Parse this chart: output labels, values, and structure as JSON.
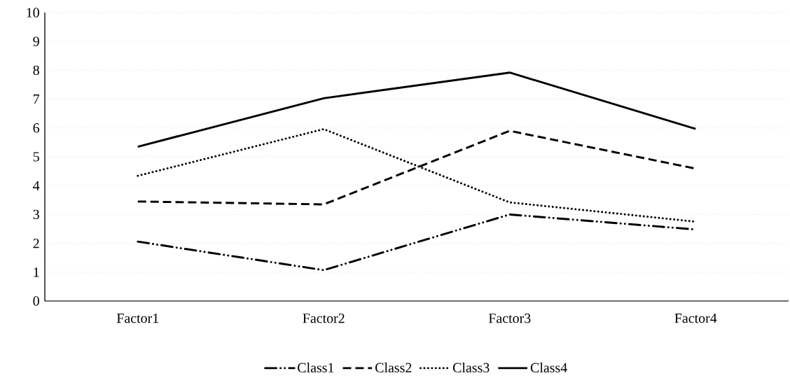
{
  "chart_data": {
    "type": "line",
    "categories": [
      "Factor1",
      "Factor2",
      "Factor3",
      "Factor4"
    ],
    "series": [
      {
        "name": "Class1",
        "color": "#000000",
        "line_style": "dashdot",
        "values": [
          2.06,
          1.07,
          3.0,
          2.48
        ]
      },
      {
        "name": "Class2",
        "color": "#000000",
        "line_style": "dashed",
        "values": [
          3.45,
          3.35,
          5.9,
          4.59
        ]
      },
      {
        "name": "Class3",
        "color": "#000000",
        "line_style": "dotted",
        "values": [
          4.34,
          5.96,
          3.42,
          2.75
        ]
      },
      {
        "name": "Class4",
        "color": "#000000",
        "line_style": "solid",
        "values": [
          5.35,
          7.03,
          7.92,
          5.97
        ]
      }
    ],
    "ylim": [
      0,
      10
    ],
    "yticks": [
      0,
      1,
      2,
      3,
      4,
      5,
      6,
      7,
      8,
      9,
      10
    ],
    "grid": "y",
    "legend": "bottom",
    "marker": "none"
  }
}
